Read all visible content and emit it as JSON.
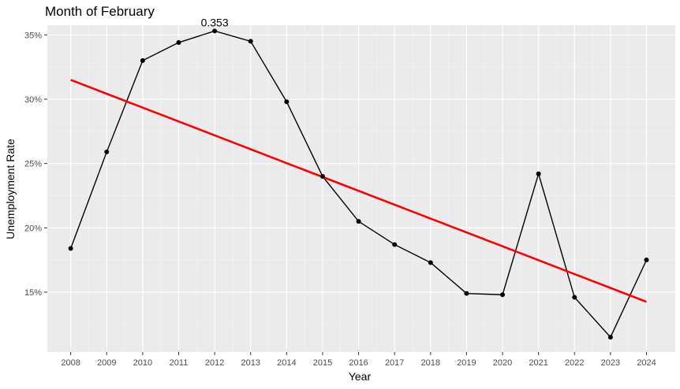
{
  "colors": {
    "panel_background": "#EBEBEB",
    "grid_major": "#FFFFFF",
    "grid_minor": "#F5F5F5",
    "series_line": "#000000",
    "trend_line": "#FF0000",
    "tick_text": "#4D4D4D"
  },
  "chart_data": {
    "type": "line",
    "title": "Month of February",
    "xlabel": "Year",
    "ylabel": "Unemployment Rate",
    "x": [
      2008,
      2009,
      2010,
      2011,
      2012,
      2013,
      2014,
      2015,
      2016,
      2017,
      2018,
      2019,
      2020,
      2021,
      2022,
      2023,
      2024
    ],
    "x_tick_labels": [
      "2008",
      "2009",
      "2010",
      "2011",
      "2012",
      "2013",
      "2014",
      "2015",
      "2016",
      "2017",
      "2018",
      "2019",
      "2020",
      "2021",
      "2022",
      "2023",
      "2024"
    ],
    "series": [
      {
        "values": [
          0.184,
          0.259,
          0.33,
          0.344,
          0.353,
          0.345,
          0.298,
          0.24,
          0.205,
          0.187,
          0.173,
          0.149,
          0.148,
          0.242,
          0.146,
          0.115,
          0.175
        ],
        "color": "#000000",
        "markers": true
      }
    ],
    "trend_line": {
      "x": [
        2008,
        2024
      ],
      "y": [
        0.315,
        0.1425
      ],
      "color": "#FF0000"
    },
    "annotation": {
      "text": "0.353",
      "x": 2012,
      "y": 0.353
    },
    "y_ticks": [
      0.15,
      0.2,
      0.25,
      0.3,
      0.35
    ],
    "y_tick_labels": [
      "15%",
      "20%",
      "25%",
      "30%",
      "35%"
    ],
    "xlim": [
      2007.35,
      2024.8
    ],
    "ylim": [
      0.1035,
      0.3575
    ],
    "grid": true,
    "legend": "none"
  }
}
